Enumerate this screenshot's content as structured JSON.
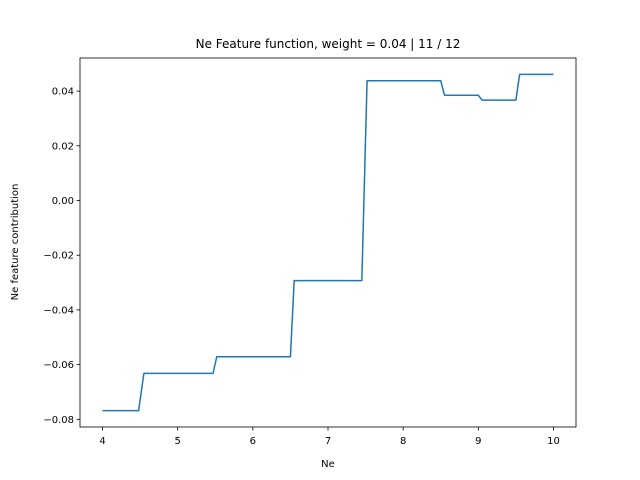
{
  "chart_data": {
    "type": "line",
    "title": "Ne Feature function, weight = 0.04 | 11 / 12",
    "xlabel": "Ne",
    "ylabel": "Ne feature contribution",
    "xlim": [
      3.7,
      10.3
    ],
    "ylim": [
      -0.0828,
      0.0521
    ],
    "xticks": [
      4,
      5,
      6,
      7,
      8,
      9,
      10
    ],
    "xtick_labels": [
      "4",
      "5",
      "6",
      "7",
      "8",
      "9",
      "10"
    ],
    "yticks": [
      -0.08,
      -0.06,
      -0.04,
      -0.02,
      0.0,
      0.02,
      0.04
    ],
    "ytick_labels": [
      "−0.08",
      "−0.06",
      "−0.04",
      "−0.02",
      "0.00",
      "0.02",
      "0.04"
    ],
    "grid": false,
    "color": "#1f77b4",
    "series": [
      {
        "x": [
          4.0,
          4.48,
          4.55,
          5.0,
          5.47,
          5.52,
          6.0,
          6.5,
          6.55,
          7.0,
          7.45,
          7.52,
          8.0,
          8.5,
          8.55,
          9.0,
          9.05,
          9.5,
          9.55,
          10.0
        ],
        "y": [
          -0.0768,
          -0.0768,
          -0.0632,
          -0.0632,
          -0.0632,
          -0.0571,
          -0.0571,
          -0.0571,
          -0.0293,
          -0.0293,
          -0.0293,
          0.0438,
          0.0438,
          0.0438,
          0.0385,
          0.0385,
          0.0367,
          0.0367,
          0.0461,
          0.0461
        ]
      }
    ]
  }
}
